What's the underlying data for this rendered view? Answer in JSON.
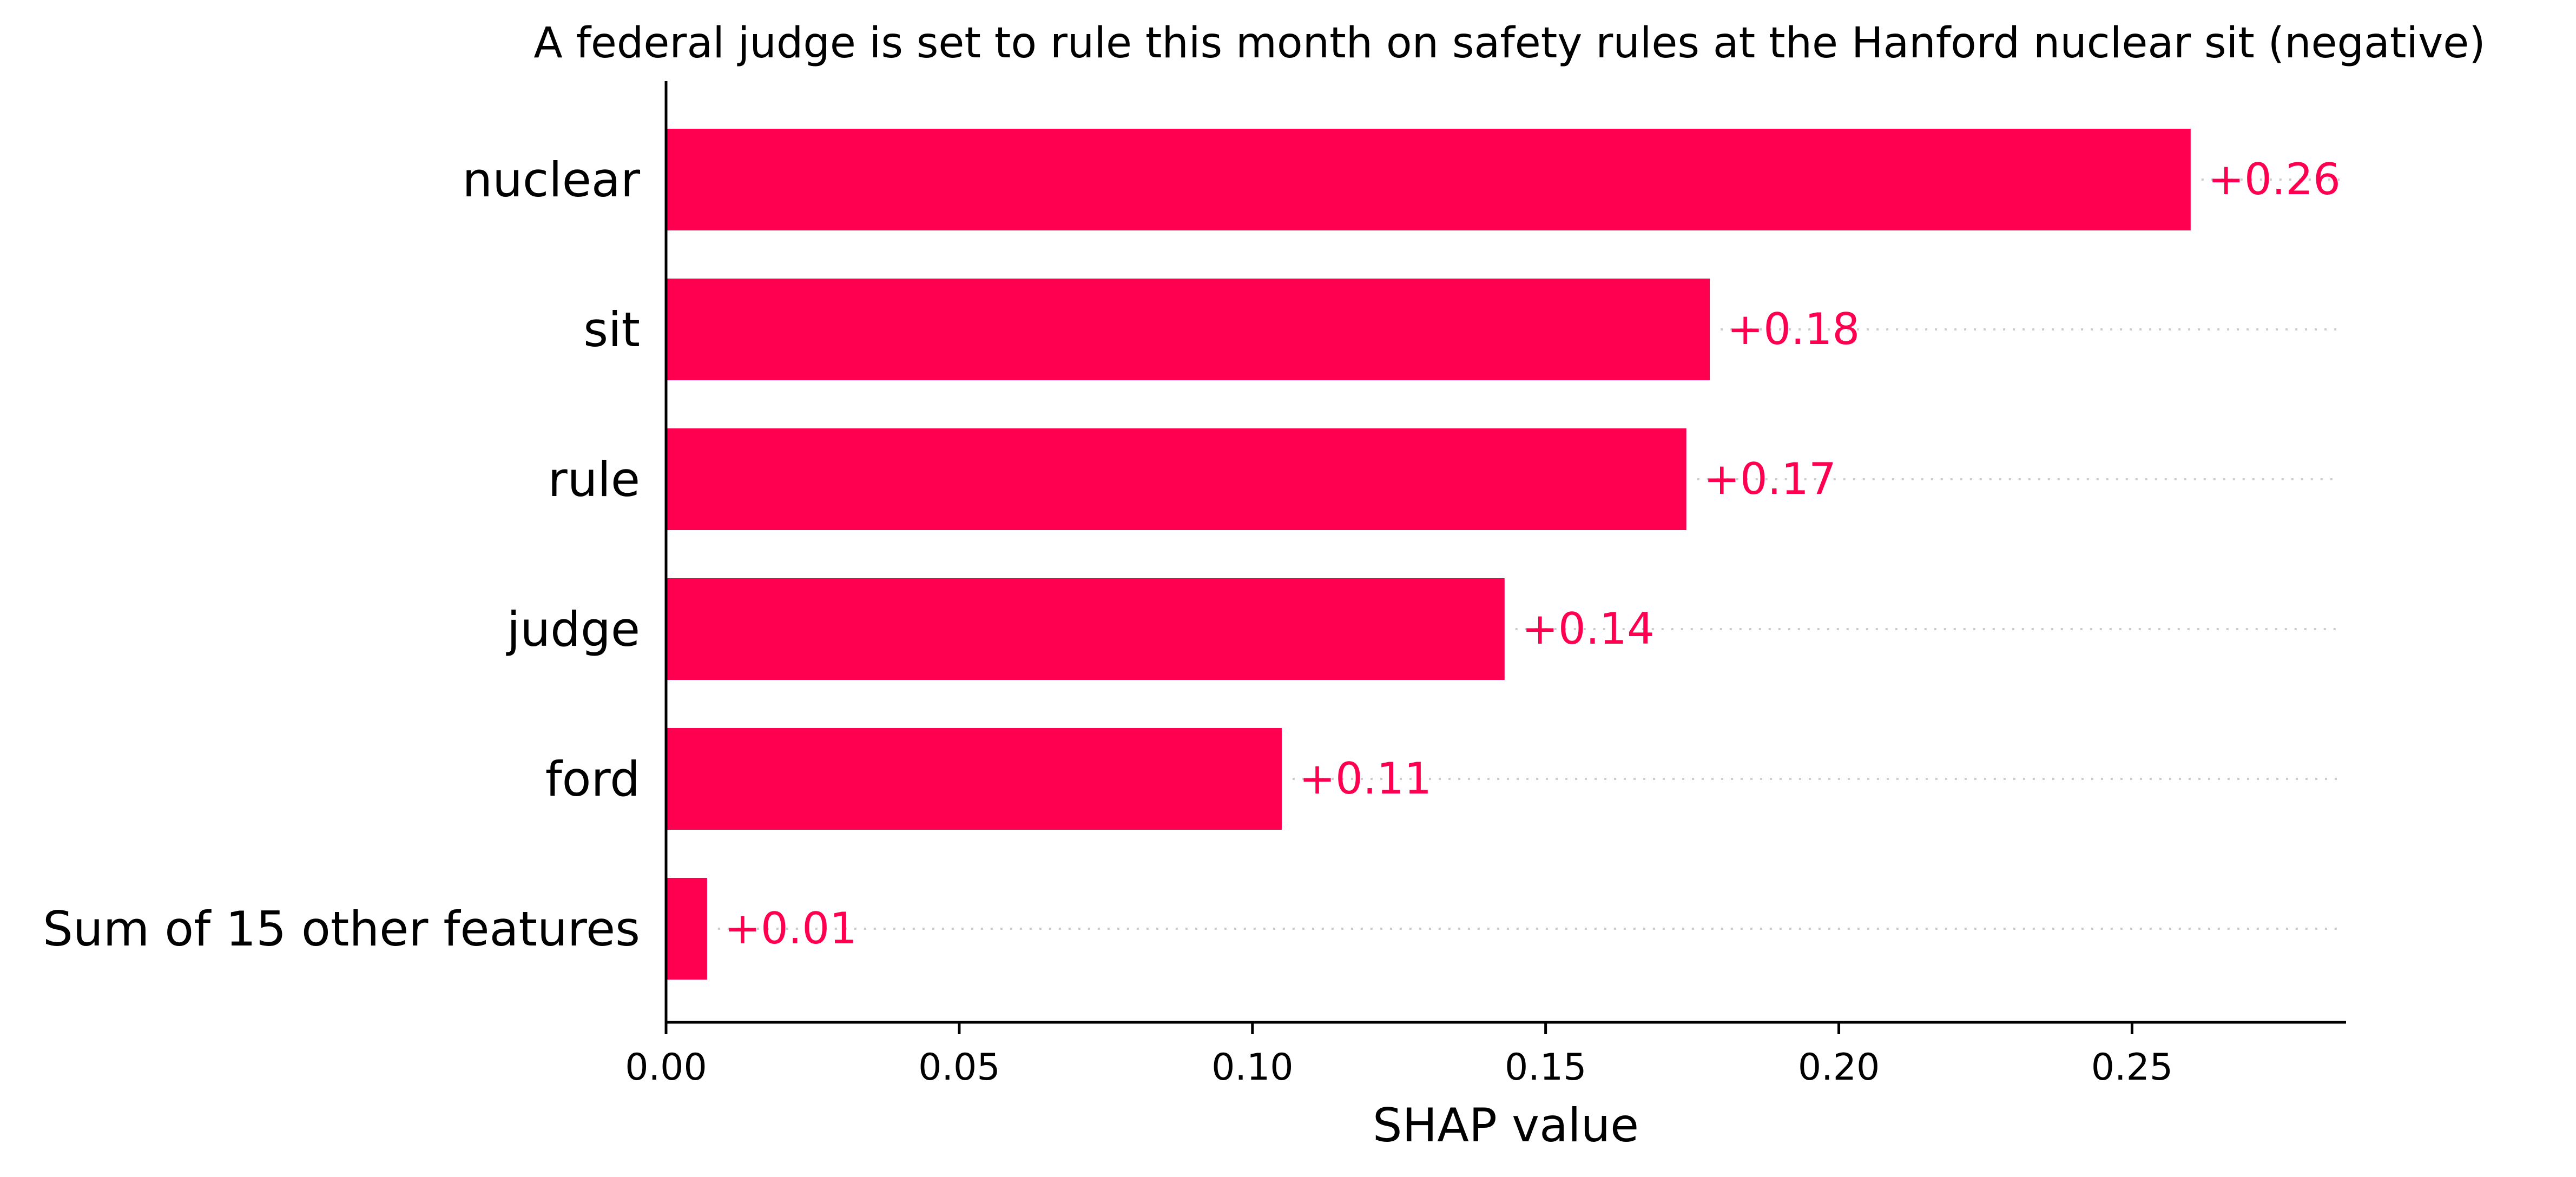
{
  "chart_data": {
    "type": "bar",
    "orientation": "horizontal",
    "title": "A federal judge is set to rule this month on safety rules at the Hanford nuclear sit (negative)",
    "xlabel": "SHAP value",
    "ylabel": "",
    "categories": [
      "nuclear",
      "sit",
      "rule",
      "judge",
      "ford",
      "Sum of 15 other features"
    ],
    "values": [
      0.26,
      0.178,
      0.174,
      0.143,
      0.105,
      0.007
    ],
    "value_labels": [
      "+0.26",
      "+0.18",
      "+0.17",
      "+0.14",
      "+0.11",
      "+0.01"
    ],
    "xlim": [
      0,
      0.2865
    ],
    "xticks": [
      0.0,
      0.05,
      0.1,
      0.15,
      0.2,
      0.25
    ],
    "xtick_labels": [
      "0.00",
      "0.05",
      "0.10",
      "0.15",
      "0.20",
      "0.25"
    ],
    "bar_color": "#ff0051",
    "label_color": "#ff0051",
    "grid": "dotted row guides"
  }
}
